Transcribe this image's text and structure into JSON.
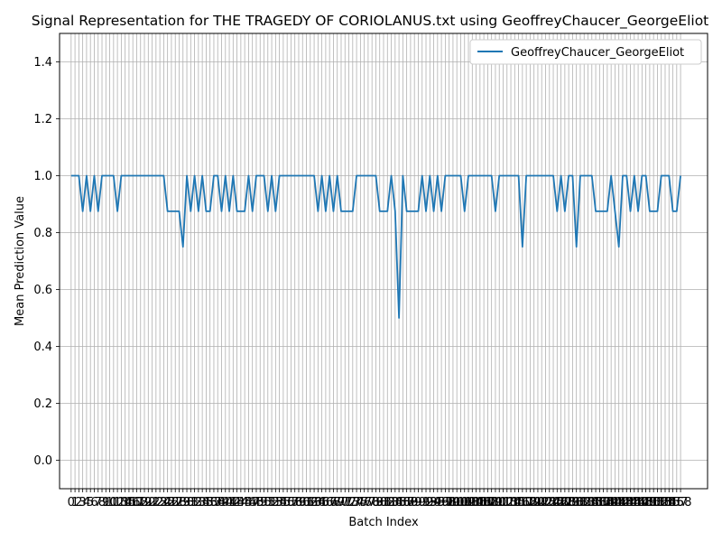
{
  "chart_data": {
    "type": "line",
    "title": "Signal Representation for THE TRAGEDY OF CORIOLANUS.txt using GeoffreyChaucer_GeorgeEliot",
    "xlabel": "Batch Index",
    "ylabel": "Mean Prediction Value",
    "xlim": [
      -3,
      165
    ],
    "ylim": [
      -0.1,
      1.5
    ],
    "yticks": [
      "0.0",
      "0.2",
      "0.4",
      "0.6",
      "0.8",
      "1.0",
      "1.2",
      "1.4"
    ],
    "grid": true,
    "legend_position": "top-right",
    "series": [
      {
        "name": "GeoffreyChaucer_GeorgeEliot",
        "color": "#1f77b4",
        "x_start": 0,
        "values": [
          1.0,
          1.0,
          1.0,
          0.875,
          1.0,
          0.875,
          1.0,
          0.875,
          1.0,
          1.0,
          1.0,
          1.0,
          0.875,
          1.0,
          1.0,
          1.0,
          1.0,
          1.0,
          1.0,
          1.0,
          1.0,
          1.0,
          1.0,
          1.0,
          1.0,
          0.875,
          0.875,
          0.875,
          0.875,
          0.75,
          1.0,
          0.875,
          1.0,
          0.875,
          1.0,
          0.875,
          0.875,
          1.0,
          1.0,
          0.875,
          1.0,
          0.875,
          1.0,
          0.875,
          0.875,
          0.875,
          1.0,
          0.875,
          1.0,
          1.0,
          1.0,
          0.875,
          1.0,
          0.875,
          1.0,
          1.0,
          1.0,
          1.0,
          1.0,
          1.0,
          1.0,
          1.0,
          1.0,
          1.0,
          0.875,
          1.0,
          0.875,
          1.0,
          0.875,
          1.0,
          0.875,
          0.875,
          0.875,
          0.875,
          1.0,
          1.0,
          1.0,
          1.0,
          1.0,
          1.0,
          0.875,
          0.875,
          0.875,
          1.0,
          0.875,
          0.5,
          1.0,
          0.875,
          0.875,
          0.875,
          0.875,
          1.0,
          0.875,
          1.0,
          0.875,
          1.0,
          0.875,
          1.0,
          1.0,
          1.0,
          1.0,
          1.0,
          0.875,
          1.0,
          1.0,
          1.0,
          1.0,
          1.0,
          1.0,
          1.0,
          0.875,
          1.0,
          1.0,
          1.0,
          1.0,
          1.0,
          1.0,
          0.75,
          1.0,
          1.0,
          1.0,
          1.0,
          1.0,
          1.0,
          1.0,
          1.0,
          0.875,
          1.0,
          0.875,
          1.0,
          1.0,
          0.75,
          1.0,
          1.0,
          1.0,
          1.0,
          0.875,
          0.875,
          0.875,
          0.875,
          1.0,
          0.875,
          0.75,
          1.0,
          1.0,
          0.875,
          1.0,
          0.875,
          1.0,
          1.0,
          0.875,
          0.875,
          0.875,
          1.0,
          1.0,
          1.0,
          0.875,
          0.875,
          1.0
        ]
      }
    ]
  }
}
